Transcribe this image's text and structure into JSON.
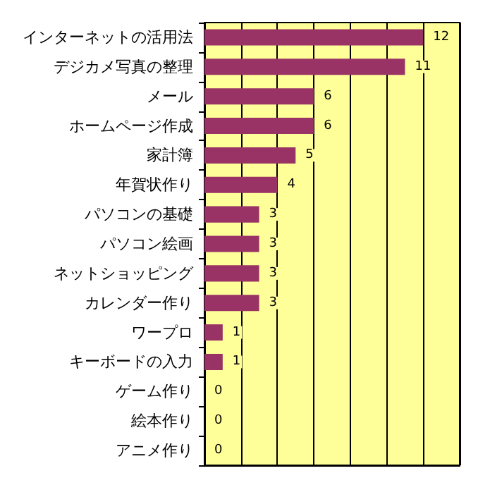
{
  "chart_data": {
    "type": "bar",
    "orientation": "horizontal",
    "categories": [
      "インターネットの活用法",
      "デジカメ写真の整理",
      "メール",
      "ホームページ作成",
      "家計簿",
      "年賀状作り",
      "パソコンの基礎",
      "パソコン絵画",
      "ネットショッピング",
      "カレンダー作り",
      "ワープロ",
      "キーボードの入力",
      "ゲーム作り",
      "絵本作り",
      "アニメ作り"
    ],
    "values": [
      12,
      11,
      6,
      6,
      5,
      4,
      3,
      3,
      3,
      3,
      1,
      1,
      0,
      0,
      0
    ],
    "color": "#993366",
    "xlim": [
      0,
      14
    ],
    "xticks": [
      {
        "value": 0,
        "label": null
      },
      {
        "value": 2,
        "label": null
      },
      {
        "value": 4,
        "label": null
      },
      {
        "value": 6,
        "label": null
      },
      {
        "value": 8,
        "label": null
      },
      {
        "value": 10,
        "label": null
      },
      {
        "value": 12,
        "label": null
      },
      {
        "value": 14,
        "label": null
      }
    ],
    "tick_labels": "y",
    "grid": "x",
    "data_labels": true
  }
}
